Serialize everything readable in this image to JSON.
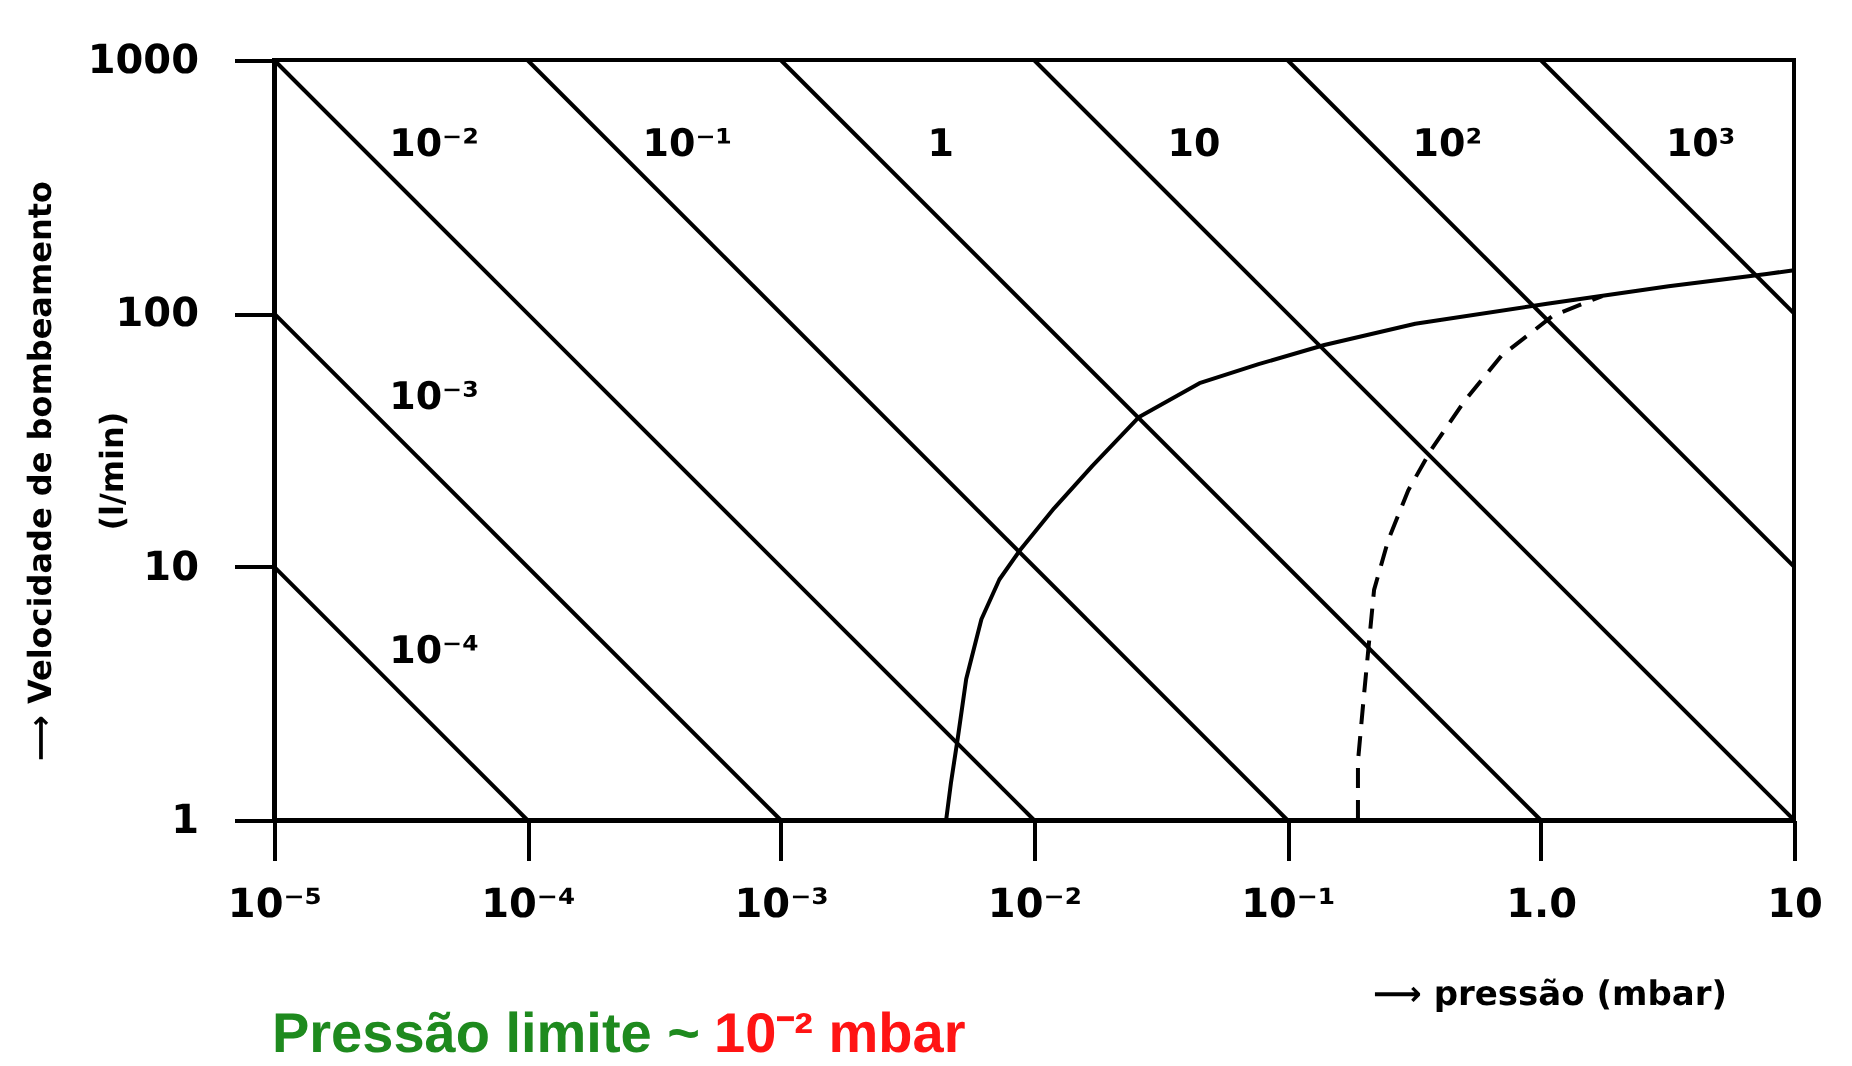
{
  "chart_data": {
    "type": "line",
    "xlabel": "⟶ pressão (mbar)",
    "ylabel": "⟶ Velocidade de bombeamento\n(l/min)",
    "log": "xy",
    "grid": false,
    "marker": "none",
    "xlim": [
      1e-05,
      10
    ],
    "xticks": [
      {
        "value": 1e-05,
        "label": "10⁻⁵"
      },
      {
        "value": 0.0001,
        "label": "10⁻⁴"
      },
      {
        "value": 0.001,
        "label": "10⁻³"
      },
      {
        "value": 0.01,
        "label": "10⁻²"
      },
      {
        "value": 0.1,
        "label": "10⁻¹"
      },
      {
        "value": 1,
        "label": "1.0"
      },
      10
    ],
    "ylim": [
      1,
      1000
    ],
    "yticks": [
      1,
      10,
      100,
      1000
    ],
    "series": [
      {
        "name": "10⁻⁴",
        "color": "#000000",
        "x": [
          1e-05,
          0.0001
        ],
        "values": [
          10,
          1
        ]
      },
      {
        "name": "10⁻³",
        "color": "#000000",
        "x": [
          1e-05,
          0.001
        ],
        "values": [
          100,
          1
        ]
      },
      {
        "name": "10⁻²",
        "color": "#000000",
        "x": [
          1e-05,
          0.01
        ],
        "values": [
          1000,
          1
        ]
      },
      {
        "name": "10⁻¹",
        "color": "#000000",
        "x": [
          0.0001,
          0.1
        ],
        "values": [
          1000,
          1
        ]
      },
      {
        "name": "1",
        "color": "#000000",
        "x": [
          0.001,
          1
        ],
        "values": [
          1000,
          1
        ]
      },
      {
        "name": "10",
        "color": "#000000",
        "x": [
          0.01,
          10
        ],
        "values": [
          1000,
          1
        ]
      },
      {
        "name": "10²",
        "color": "#000000",
        "x": [
          0.1,
          10
        ],
        "values": [
          1000,
          10
        ]
      },
      {
        "name": "10³",
        "color": "#000000",
        "x": [
          1,
          10
        ],
        "values": [
          1000,
          100
        ]
      },
      {
        "color": "#000000",
        "x": [
          0.0045,
          0.0047,
          0.005,
          0.0054,
          0.0062,
          0.0073,
          0.0088,
          0.012,
          0.017,
          0.026,
          0.045,
          0.077,
          0.14,
          0.32,
          1.06,
          3.2,
          7.8,
          10
        ],
        "values": [
          1,
          1.4,
          2.1,
          3.6,
          6.2,
          8.9,
          11.6,
          17,
          25,
          39,
          53,
          63,
          75,
          91,
          109,
          128,
          143,
          148
        ]
      },
      {
        "color": "#000000",
        "line_style": "dashed",
        "x": [
          0.19,
          0.19,
          0.2,
          0.21,
          0.22,
          0.25,
          0.3,
          0.37,
          0.5,
          0.7,
          1.12,
          1.75
        ],
        "values": [
          1,
          1.7,
          3,
          5,
          8.1,
          12.7,
          20,
          29,
          45,
          68,
          98,
          117
        ]
      }
    ],
    "annotations": [
      "Pressão limite ~",
      "10⁻² mbar"
    ]
  }
}
